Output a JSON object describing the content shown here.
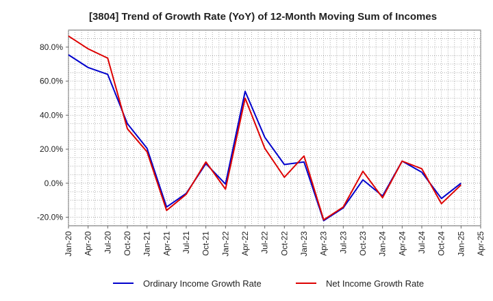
{
  "chart_data": {
    "type": "line",
    "title": "[3804]  Trend of Growth Rate (YoY) of 12-Month Moving Sum of Incomes",
    "xlabel": "",
    "ylabel": "",
    "ylim": [
      -25,
      90
    ],
    "y_ticks": [
      -20,
      0,
      20,
      40,
      60,
      80
    ],
    "y_tick_labels": [
      "-20.0%",
      "0.0%",
      "20.0%",
      "40.0%",
      "60.0%",
      "80.0%"
    ],
    "x_tick_labels": [
      "Jan-20",
      "Apr-20",
      "Jul-20",
      "Oct-20",
      "Jan-21",
      "Apr-21",
      "Jul-21",
      "Oct-21",
      "Jan-22",
      "Apr-22",
      "Jul-22",
      "Oct-22",
      "Jan-23",
      "Apr-23",
      "Jul-23",
      "Oct-23",
      "Jan-24",
      "Apr-24",
      "Jul-24",
      "Oct-24",
      "Jan-25",
      "Apr-25"
    ],
    "grid": true,
    "legend_position": "bottom",
    "series": [
      {
        "name": "Ordinary Income Growth Rate",
        "color": "#0000cc",
        "values": [
          75.5,
          68.0,
          64.0,
          35.0,
          20.5,
          -14.0,
          -6.0,
          11.5,
          -0.5,
          54.0,
          27.0,
          11.0,
          12.5,
          -22.0,
          -14.5,
          2.0,
          -7.5,
          13.0,
          6.5,
          -9.0,
          0.0
        ]
      },
      {
        "name": "Net Income Growth Rate",
        "color": "#dd0000",
        "values": [
          86.5,
          79.0,
          73.5,
          32.0,
          18.5,
          -16.0,
          -6.5,
          12.5,
          -3.5,
          50.0,
          20.5,
          3.5,
          16.0,
          -21.5,
          -14.0,
          7.0,
          -8.5,
          13.0,
          8.5,
          -12.0,
          -1.0
        ]
      }
    ]
  }
}
